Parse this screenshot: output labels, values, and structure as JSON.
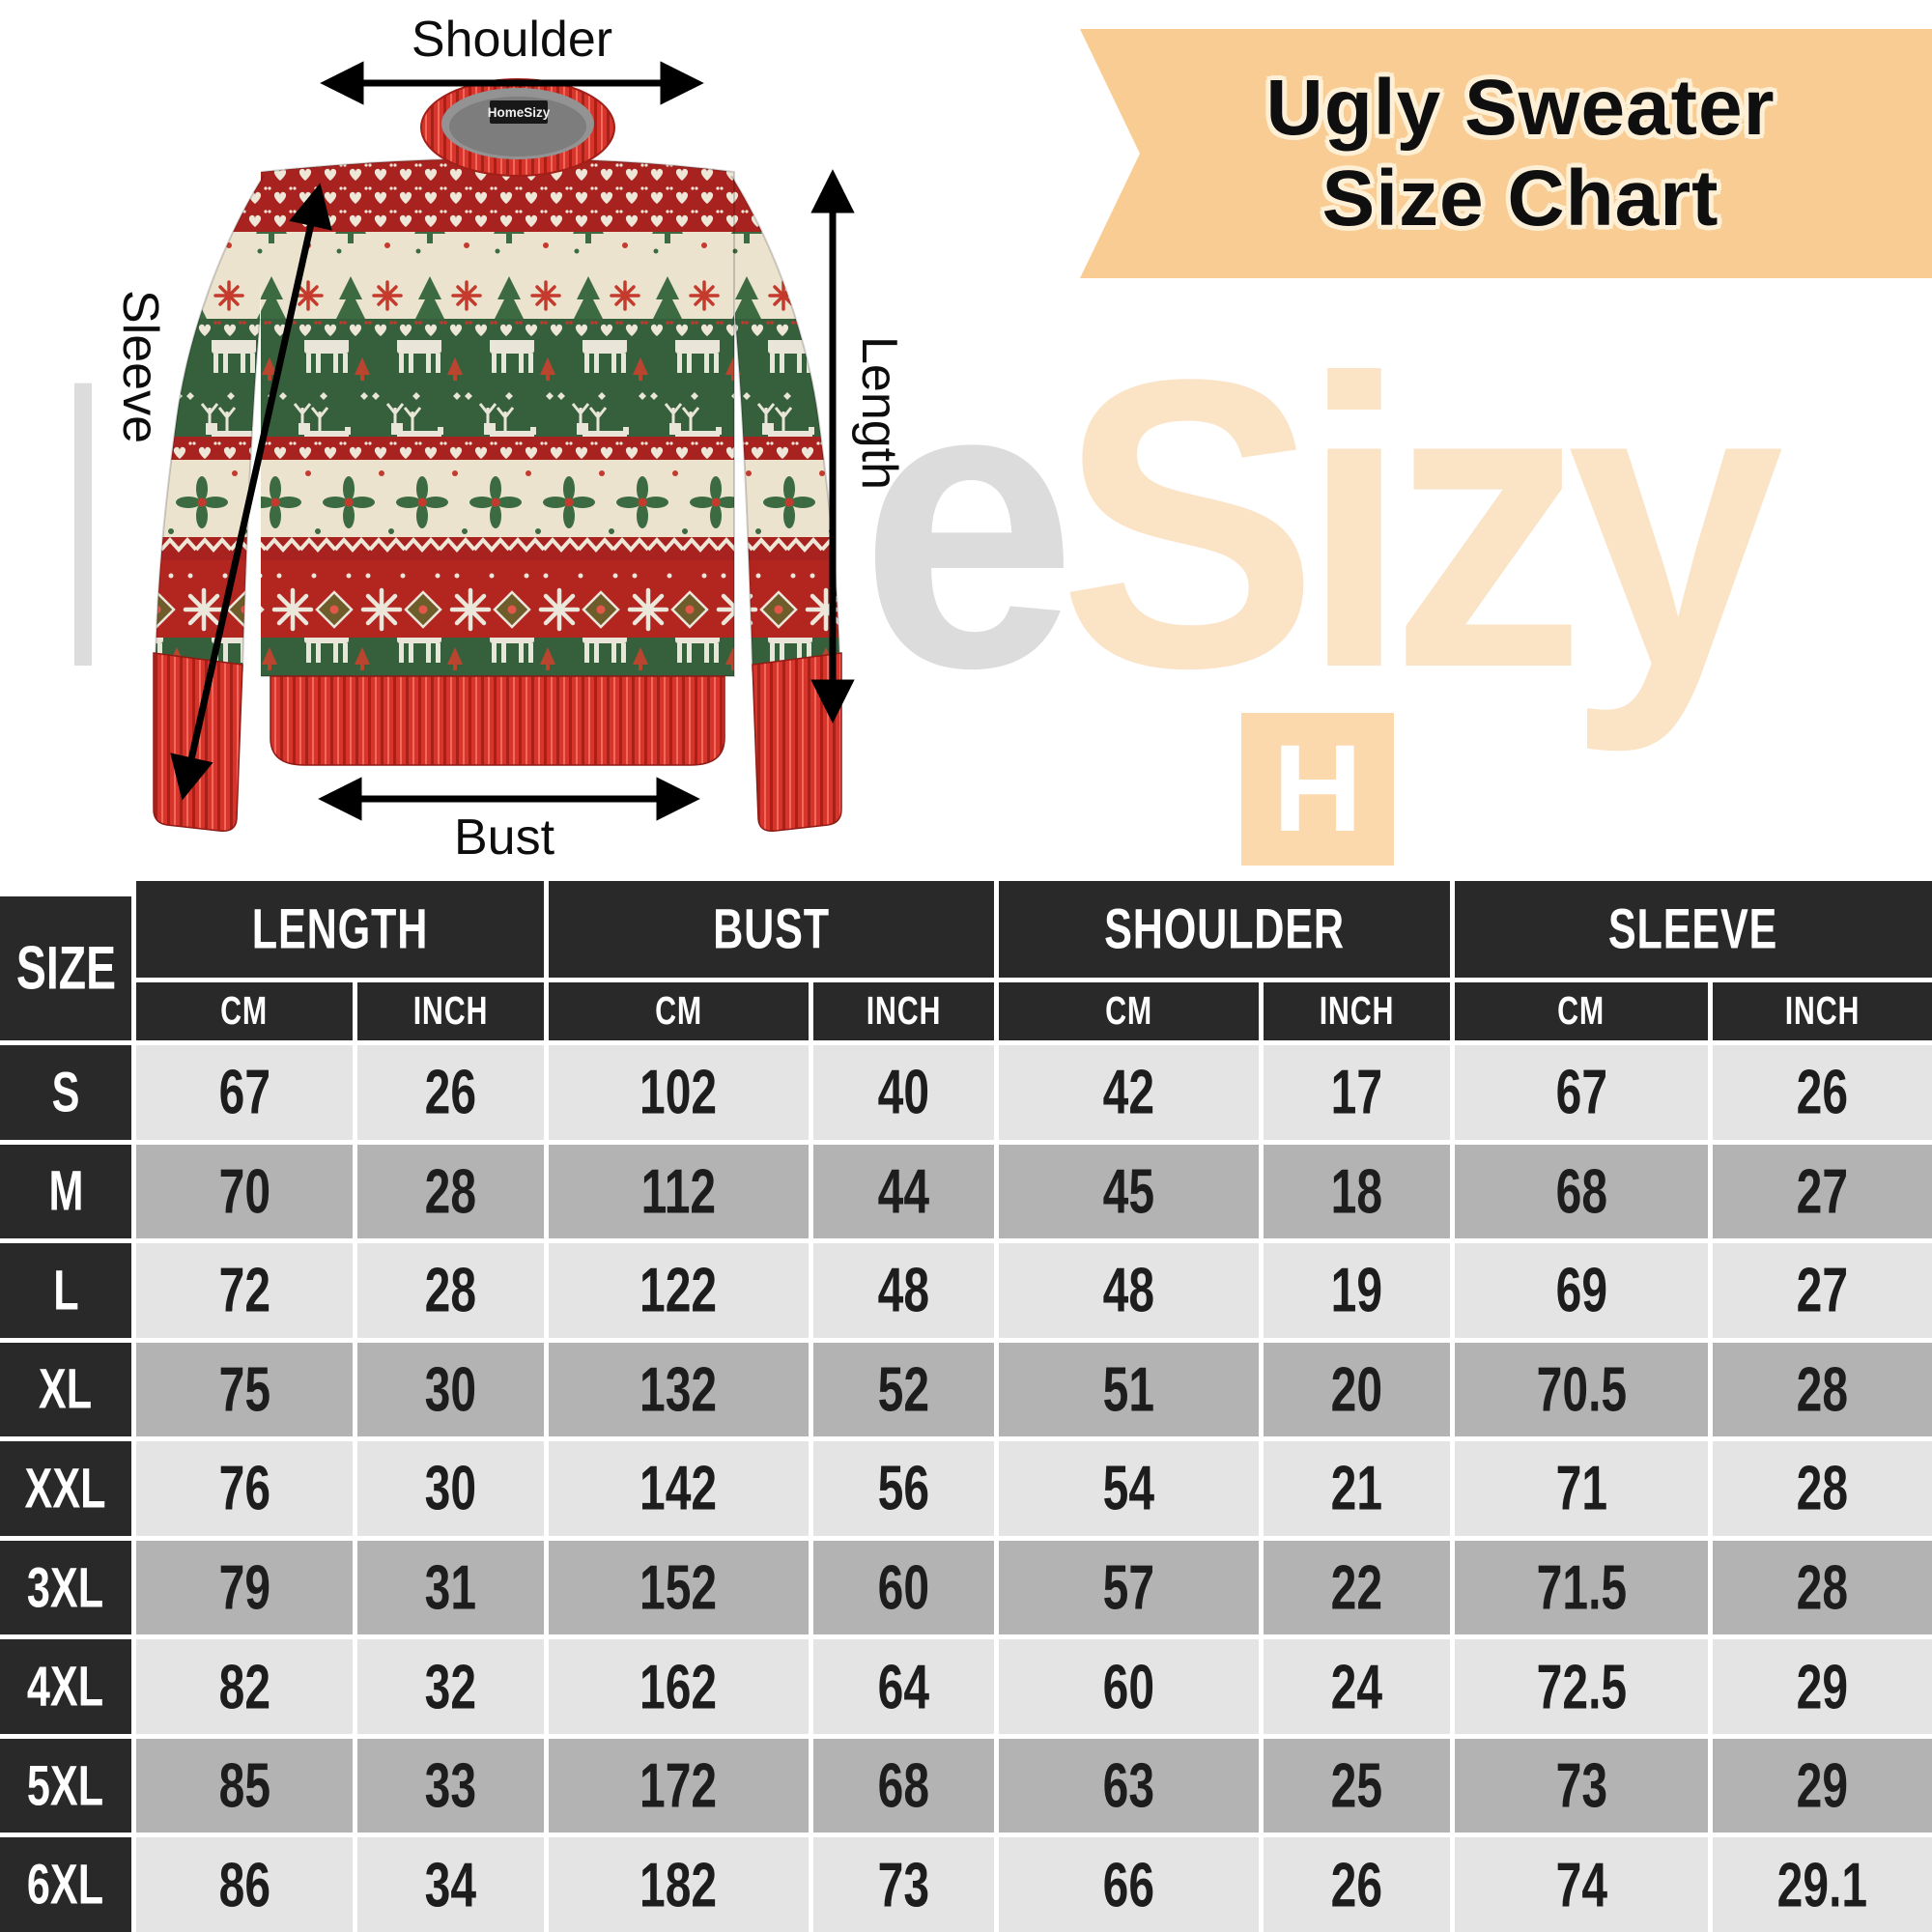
{
  "banner": {
    "line1": "Ugly Sweater",
    "line2": "Size Chart",
    "bg_color": "#f8cc92"
  },
  "watermark": {
    "word1": "Home",
    "word2": "Sizy",
    "logo_letter": "H",
    "word1_color": "#dcdcdc",
    "word2_color": "#fbe3c6",
    "logo_bg": "#fbd9ad"
  },
  "sweater": {
    "collar_tag": "HomeSizy"
  },
  "measurement_labels": {
    "shoulder": "Shoulder",
    "sleeve": "Sleeve",
    "length": "Length",
    "bust": "Bust"
  },
  "chart_data": {
    "type": "table",
    "title": "Ugly Sweater Size Chart",
    "corner_header": "SIZE",
    "group_headers": [
      "LENGTH",
      "BUST",
      "SHOULDER",
      "SLEEVE"
    ],
    "unit_headers": [
      "CM",
      "INCH"
    ],
    "rows": [
      {
        "size": "S",
        "values": [
          "67",
          "26",
          "102",
          "40",
          "42",
          "17",
          "67",
          "26"
        ]
      },
      {
        "size": "M",
        "values": [
          "70",
          "28",
          "112",
          "44",
          "45",
          "18",
          "68",
          "27"
        ]
      },
      {
        "size": "L",
        "values": [
          "72",
          "28",
          "122",
          "48",
          "48",
          "19",
          "69",
          "27"
        ]
      },
      {
        "size": "XL",
        "values": [
          "75",
          "30",
          "132",
          "52",
          "51",
          "20",
          "70.5",
          "28"
        ]
      },
      {
        "size": "XXL",
        "values": [
          "76",
          "30",
          "142",
          "56",
          "54",
          "21",
          "71",
          "28"
        ]
      },
      {
        "size": "3XL",
        "values": [
          "79",
          "31",
          "152",
          "60",
          "57",
          "22",
          "71.5",
          "28"
        ]
      },
      {
        "size": "4XL",
        "values": [
          "82",
          "32",
          "162",
          "64",
          "60",
          "24",
          "72.5",
          "29"
        ]
      },
      {
        "size": "5XL",
        "values": [
          "85",
          "33",
          "172",
          "68",
          "63",
          "25",
          "73",
          "29"
        ]
      },
      {
        "size": "6XL",
        "values": [
          "86",
          "34",
          "182",
          "73",
          "66",
          "26",
          "74",
          "29.1"
        ]
      }
    ],
    "colors": {
      "header_bg": "#292929",
      "row_light": "#e4e4e4",
      "row_dark": "#b3b3b3"
    }
  }
}
